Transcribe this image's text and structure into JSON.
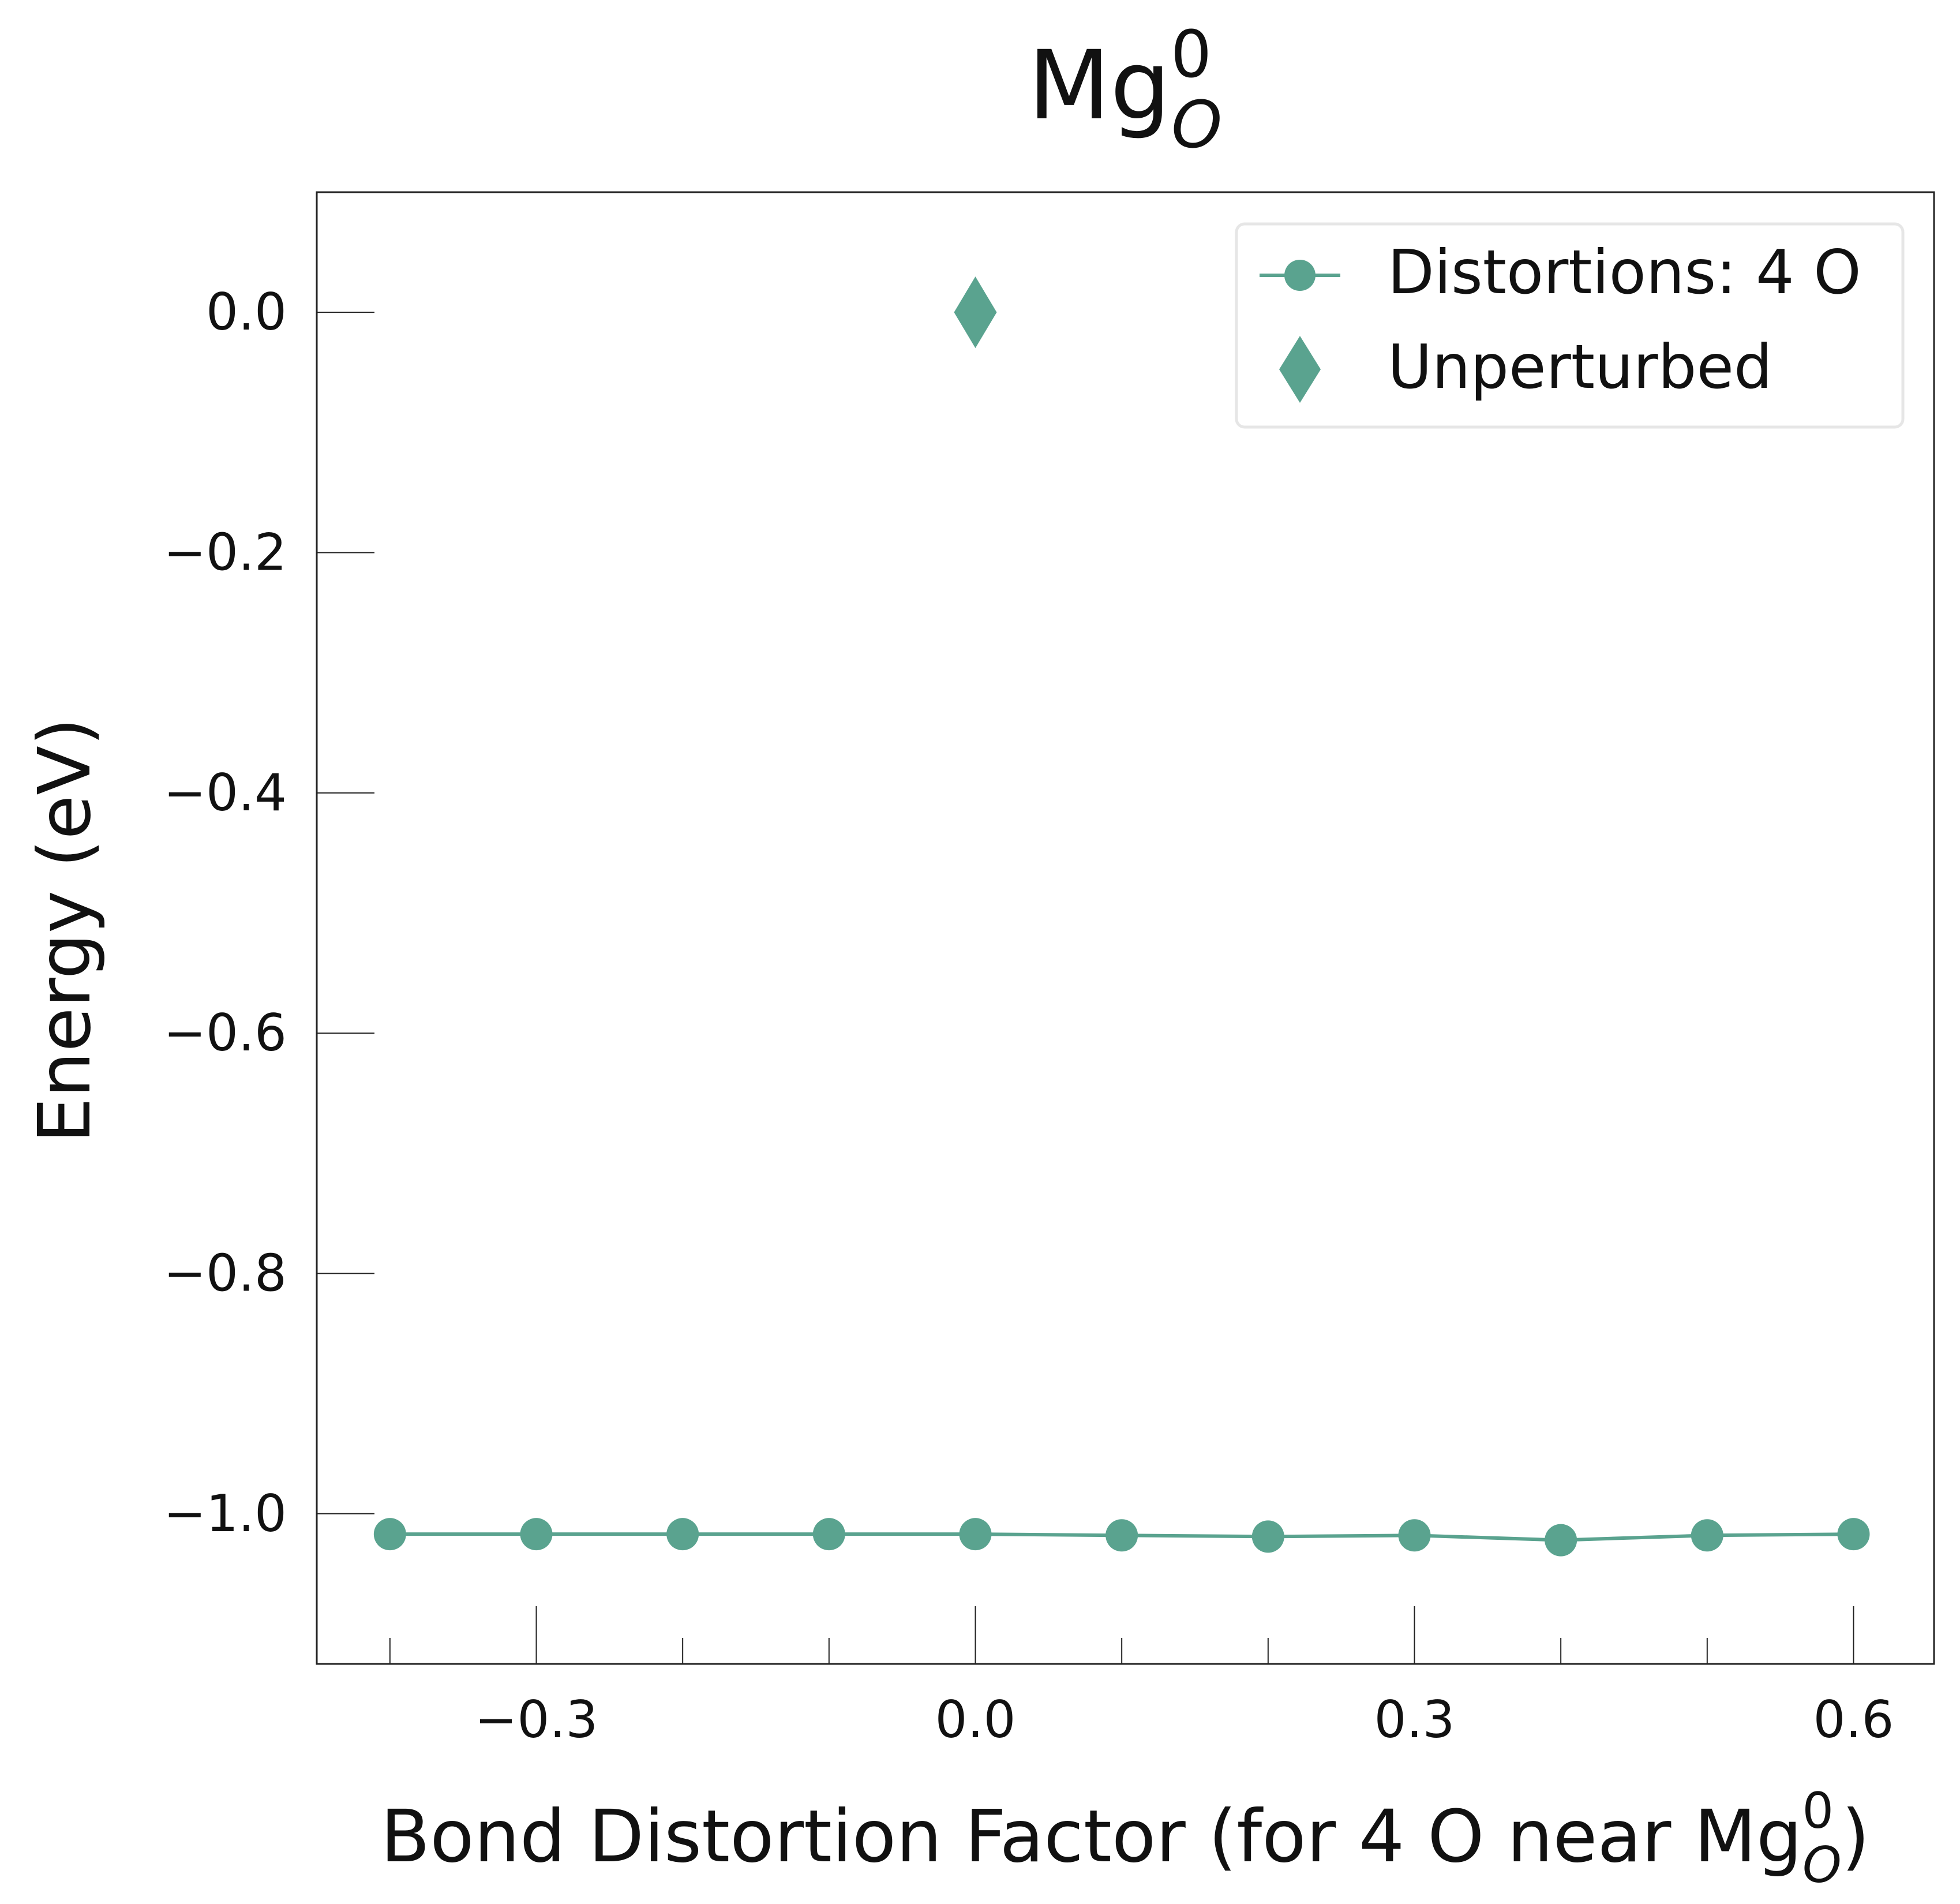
{
  "chart_data": {
    "type": "line",
    "title": {
      "base": "Mg",
      "sup": "0",
      "sub": "O"
    },
    "xlabel": {
      "prefix": "Bond Distortion Factor (for 4 O near Mg",
      "sup": "0",
      "sub": "O",
      "suffix": ")"
    },
    "ylabel": "Energy (eV)",
    "xlim": [
      -0.45,
      0.655
    ],
    "ylim": [
      -1.125,
      0.1
    ],
    "x_ticks": [
      -0.3,
      0.0,
      0.3,
      0.6
    ],
    "x_tick_labels": [
      "−0.3",
      "0.0",
      "0.3",
      "0.6"
    ],
    "x_minor_ticks": [
      -0.4,
      -0.2,
      -0.1,
      0.1,
      0.2,
      0.4,
      0.5
    ],
    "y_ticks": [
      0.0,
      -0.2,
      -0.4,
      -0.6,
      -0.8,
      -1.0
    ],
    "y_tick_labels": [
      "0.0",
      "−0.2",
      "−0.4",
      "−0.6",
      "−0.8",
      "−1.0"
    ],
    "grid": false,
    "legend_position": "top-right",
    "color": "#5aa38f",
    "series": [
      {
        "name": "Distortions: 4 O",
        "marker": "circle",
        "line": true,
        "x": [
          -0.4,
          -0.3,
          -0.2,
          -0.1,
          0.0,
          0.1,
          0.2,
          0.3,
          0.4,
          0.5,
          0.6
        ],
        "y": [
          -1.017,
          -1.017,
          -1.017,
          -1.017,
          -1.017,
          -1.018,
          -1.019,
          -1.018,
          -1.022,
          -1.018,
          -1.017
        ]
      },
      {
        "name": "Unperturbed",
        "marker": "diamond",
        "line": false,
        "x": [
          0.0
        ],
        "y": [
          0.0
        ]
      }
    ]
  }
}
